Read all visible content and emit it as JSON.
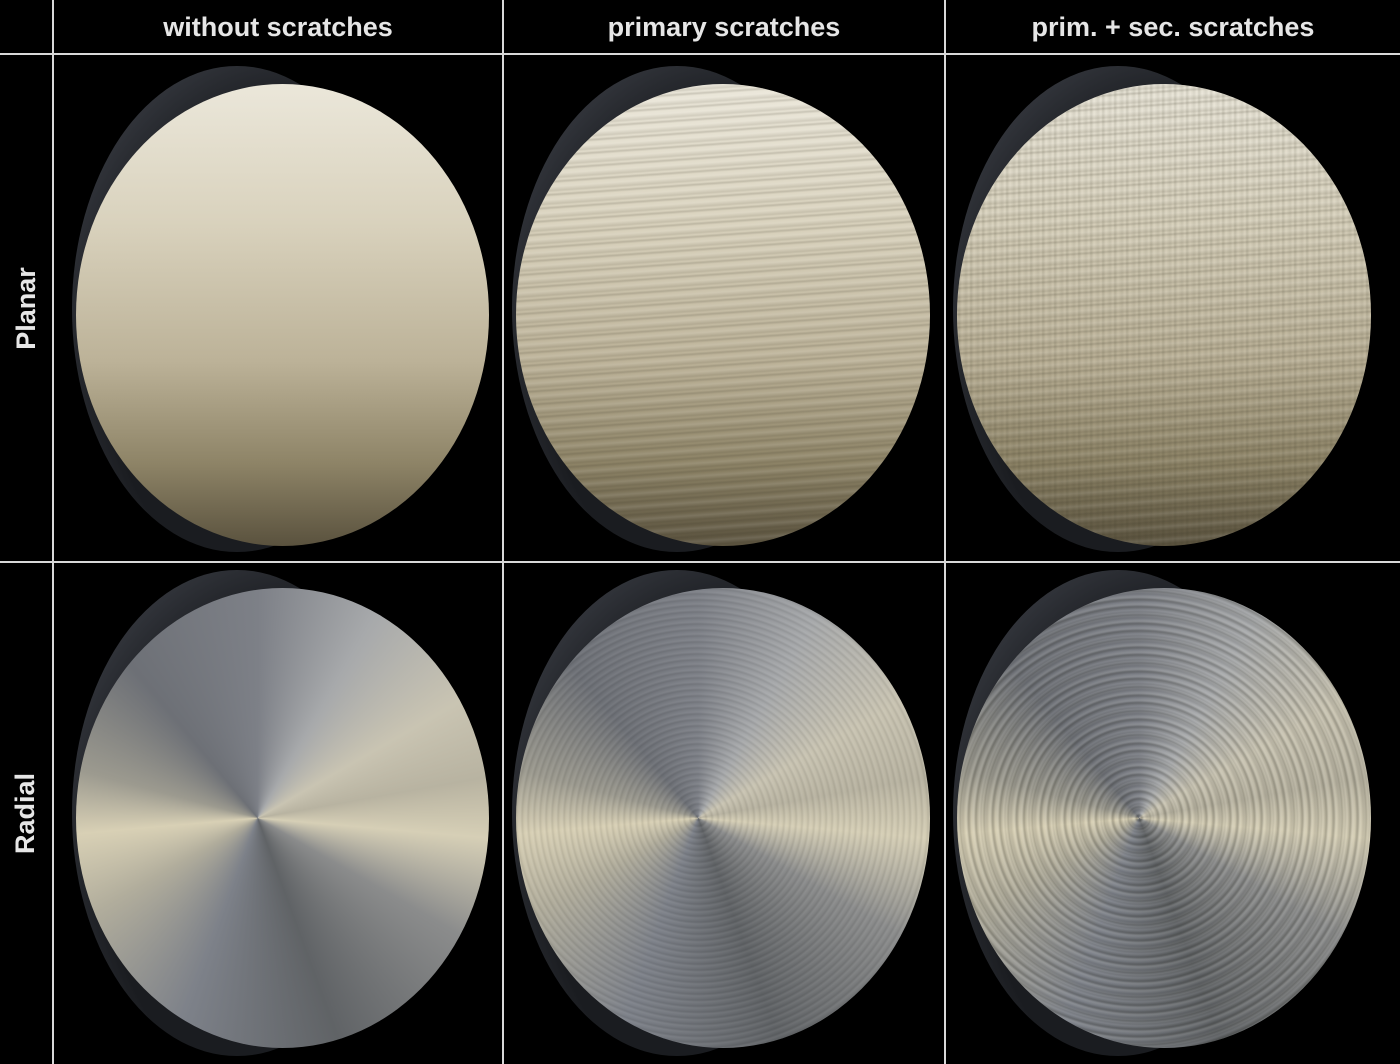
{
  "columns": [
    "without scratches",
    "primary scratches",
    "prim. + sec. scratches"
  ],
  "rows": [
    "Planar",
    "Radial"
  ]
}
